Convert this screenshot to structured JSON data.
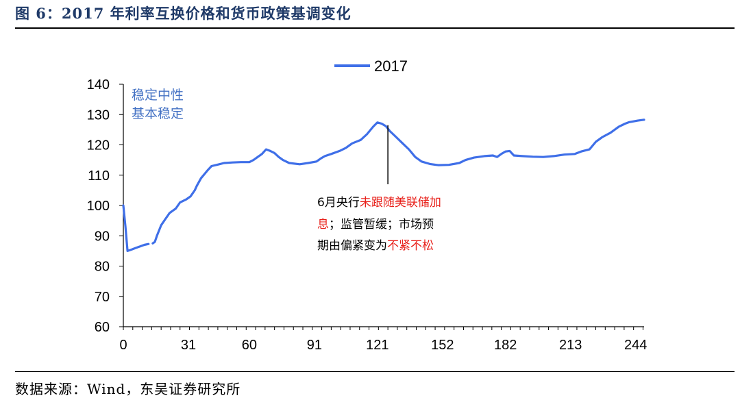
{
  "figure": {
    "title": "图 6：2017 年利率互换价格和货币政策基调变化",
    "source": "数据来源：Wind，东吴证券研究所"
  },
  "chart_data": {
    "type": "line",
    "series": [
      {
        "name": "2017",
        "color": "#3f6fe8",
        "segments": [
          [
            [
              0,
              100
            ],
            [
              1,
              93
            ],
            [
              2,
              85
            ],
            [
              4,
              85.5
            ],
            [
              6,
              86
            ],
            [
              8,
              86.5
            ],
            [
              10,
              87
            ],
            [
              12,
              87.3
            ]
          ],
          [
            [
              14,
              87.5
            ],
            [
              15,
              88
            ],
            [
              16,
              90
            ],
            [
              18,
              93.5
            ],
            [
              20,
              95.5
            ],
            [
              22,
              97.5
            ],
            [
              25,
              99
            ],
            [
              27,
              101
            ],
            [
              30,
              102
            ],
            [
              32,
              103
            ],
            [
              34,
              105
            ],
            [
              35,
              106.5
            ],
            [
              37,
              109
            ],
            [
              40,
              111.5
            ],
            [
              42,
              113
            ],
            [
              45,
              113.5
            ],
            [
              48,
              114
            ],
            [
              52,
              114.2
            ],
            [
              56,
              114.3
            ],
            [
              60,
              114.3
            ],
            [
              62,
              115
            ],
            [
              64,
              116
            ],
            [
              66,
              117
            ],
            [
              68,
              118.5
            ],
            [
              70,
              118
            ],
            [
              72,
              117.3
            ],
            [
              74,
              116
            ],
            [
              76,
              115
            ],
            [
              79,
              114
            ],
            [
              84,
              113.6
            ],
            [
              88,
              114
            ],
            [
              92,
              114.5
            ],
            [
              94,
              115.5
            ],
            [
              96,
              116.3
            ],
            [
              99,
              117
            ],
            [
              103,
              118
            ],
            [
              106,
              119
            ],
            [
              109,
              120.5
            ],
            [
              113,
              121.6
            ],
            [
              116,
              123.5
            ],
            [
              119,
              126
            ],
            [
              121,
              127.4
            ],
            [
              123,
              127
            ],
            [
              125,
              126.2
            ],
            [
              127,
              124.5
            ],
            [
              130,
              122.5
            ],
            [
              133,
              120.5
            ],
            [
              136,
              118.5
            ],
            [
              139,
              116
            ],
            [
              142,
              114.5
            ],
            [
              146,
              113.7
            ],
            [
              150,
              113.3
            ],
            [
              155,
              113.4
            ],
            [
              160,
              114
            ],
            [
              163,
              115
            ],
            [
              167,
              115.8
            ],
            [
              172,
              116.3
            ],
            [
              176,
              116.5
            ],
            [
              178,
              116
            ],
            [
              180,
              117
            ],
            [
              182,
              117.8
            ],
            [
              184,
              118
            ],
            [
              186,
              116.5
            ],
            [
              190,
              116.3
            ],
            [
              195,
              116.1
            ],
            [
              200,
              116
            ],
            [
              205,
              116.3
            ],
            [
              210,
              116.8
            ],
            [
              215,
              117
            ],
            [
              218,
              117.8
            ],
            [
              222,
              118.5
            ],
            [
              225,
              121
            ],
            [
              228,
              122.5
            ],
            [
              232,
              124
            ],
            [
              236,
              126
            ],
            [
              239,
              127
            ],
            [
              241,
              127.5
            ],
            [
              245,
              128
            ],
            [
              248,
              128.3
            ]
          ]
        ]
      }
    ],
    "x_ticks": [
      0,
      31,
      60,
      91,
      121,
      152,
      182,
      213,
      244
    ],
    "y_ticks": [
      60,
      70,
      80,
      90,
      100,
      110,
      120,
      130,
      140
    ],
    "xlim": [
      0,
      248
    ],
    "ylim": [
      60,
      140
    ],
    "grid": false,
    "legend": "top-center",
    "annotations": {
      "top_left_line1": "稳定中性",
      "top_left_line2": "基本稳定",
      "event": {
        "x": 126,
        "y_top": 126.5,
        "y_bottom": 107,
        "line1_black": "6月央行",
        "line1_red": "未跟随美联储加",
        "line2_red": "息",
        "line2_black": "；监管暂缓；市场预",
        "line3_black": "期由偏紧变为",
        "line3_red": "不紧不松"
      }
    }
  }
}
